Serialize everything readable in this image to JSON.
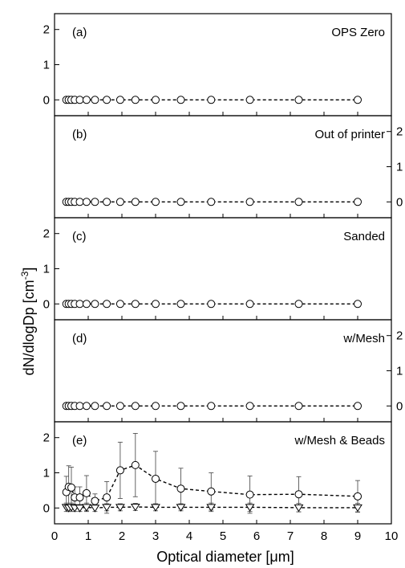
{
  "chart_data": {
    "type": "scatter",
    "layout": "stacked-panels",
    "xlabel": "Optical diameter [μm]",
    "ylabel_main": "dN/dlogDp [cm",
    "ylabel_sup": "-3",
    "ylabel_tail": "]",
    "xlim": [
      0,
      10
    ],
    "x_ticks": [
      0,
      1,
      2,
      3,
      4,
      5,
      6,
      7,
      8,
      9,
      10
    ],
    "x_tick_labels": [
      "0",
      "1",
      "2",
      "3",
      "4",
      "5",
      "6",
      "7",
      "8",
      "9",
      "10"
    ],
    "ylim": [
      -0.45,
      2.45
    ],
    "y_ticks": [
      0,
      1,
      2
    ],
    "y_tick_labels": [
      "0",
      "1",
      "2"
    ],
    "x": [
      0.35,
      0.42,
      0.5,
      0.6,
      0.75,
      0.95,
      1.2,
      1.55,
      1.95,
      2.4,
      3.0,
      3.75,
      4.65,
      5.8,
      7.25,
      9.0
    ],
    "panels": [
      {
        "label": "(a)",
        "title": "OPS Zero",
        "y_axis_side": "left",
        "series": [
          {
            "marker": "circle",
            "line": "dashed",
            "values": [
              0,
              0,
              0,
              0,
              0,
              0,
              0,
              0,
              0,
              0,
              0,
              0,
              0,
              0,
              0,
              0
            ]
          }
        ]
      },
      {
        "label": "(b)",
        "title": "Out of printer",
        "y_axis_side": "right",
        "series": [
          {
            "marker": "circle",
            "line": "dashed",
            "values": [
              0,
              0,
              0,
              0,
              0,
              0,
              0,
              0,
              0,
              0,
              0,
              0,
              0,
              0,
              0,
              0
            ]
          }
        ]
      },
      {
        "label": "(c)",
        "title": "Sanded",
        "y_axis_side": "left",
        "series": [
          {
            "marker": "circle",
            "line": "dashed",
            "values": [
              0,
              0,
              0,
              0,
              0,
              0,
              0,
              0,
              0,
              0,
              0,
              0,
              0,
              0,
              0,
              0
            ]
          }
        ]
      },
      {
        "label": "(d)",
        "title": "w/Mesh",
        "y_axis_side": "right",
        "series": [
          {
            "marker": "circle",
            "line": "dashed",
            "values": [
              0,
              0,
              0,
              0,
              0,
              0,
              0,
              0,
              0,
              0,
              0,
              0,
              0,
              0,
              0,
              0
            ]
          }
        ]
      },
      {
        "label": "(e)",
        "title": "w/Mesh & Beads",
        "y_axis_side": "left",
        "series": [
          {
            "marker": "circle",
            "line": "dashed",
            "values": [
              0.45,
              0.6,
              0.58,
              0.3,
              0.3,
              0.42,
              0.2,
              0.3,
              1.07,
              1.22,
              0.83,
              0.55,
              0.47,
              0.38,
              0.39,
              0.33
            ],
            "error": [
              0.45,
              0.6,
              0.58,
              0.3,
              0.3,
              0.5,
              0.2,
              0.45,
              0.8,
              0.9,
              0.78,
              0.58,
              0.53,
              0.53,
              0.5,
              0.45
            ]
          },
          {
            "marker": "triangle-down",
            "line": "dashed",
            "values": [
              0.02,
              0.0,
              0.02,
              0.0,
              0.0,
              0.02,
              0.0,
              0.02,
              0.02,
              0.03,
              0.02,
              0.02,
              0.02,
              0.02,
              0.01,
              0.01
            ],
            "error": [
              0.12,
              0.1,
              0.12,
              0.1,
              0.1,
              0.12,
              0.1,
              0.1,
              0.1,
              0.1,
              0.1,
              0.1,
              0.12,
              0.12,
              0.12,
              0.12
            ]
          }
        ]
      }
    ]
  }
}
